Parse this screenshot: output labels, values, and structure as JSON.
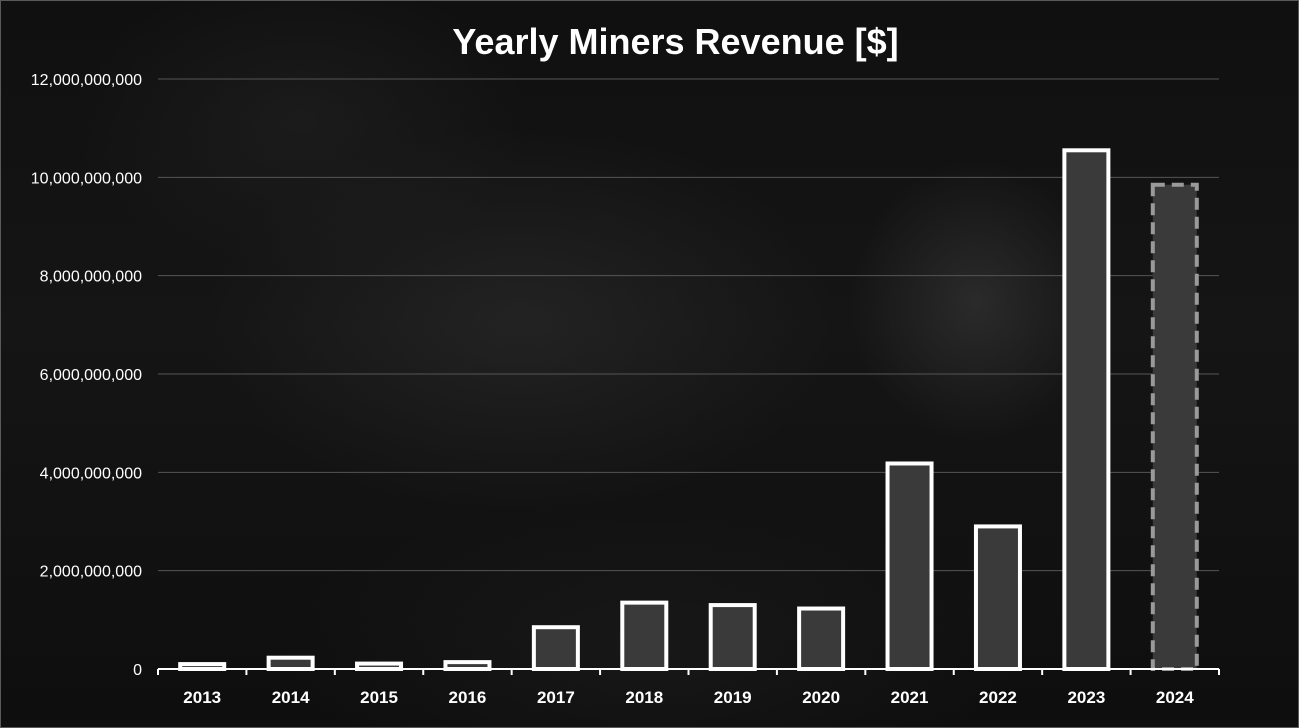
{
  "chart_data": {
    "type": "bar",
    "title": "Yearly Miners Revenue [$]",
    "xlabel": "",
    "ylabel": "",
    "categories": [
      "2013",
      "2014",
      "2015",
      "2016",
      "2017",
      "2018",
      "2019",
      "2020",
      "2021",
      "2022",
      "2023",
      "2024"
    ],
    "values": [
      100000000,
      230000000,
      110000000,
      140000000,
      850000000,
      1350000000,
      1300000000,
      1230000000,
      4180000000,
      2900000000,
      10550000000,
      9850000000
    ],
    "ylim": [
      0,
      12000000000
    ],
    "yticks": [
      "0",
      "2,000,000,000",
      "4,000,000,000",
      "6,000,000,000",
      "8,000,000,000",
      "10,000,000,000",
      "12,000,000,000"
    ],
    "ytick_values": [
      0,
      2000000000,
      4000000000,
      6000000000,
      8000000000,
      10000000000,
      12000000000
    ],
    "grid": true,
    "legend": "none",
    "colors": {
      "bar_fill": "#3a3a3a",
      "bar_outline": "#ffffff",
      "projected_outline": "#9a9a9a",
      "gridline": "#555555",
      "axis": "#ffffff",
      "text": "#ffffff"
    },
    "projected_categories": [
      "2024"
    ]
  }
}
